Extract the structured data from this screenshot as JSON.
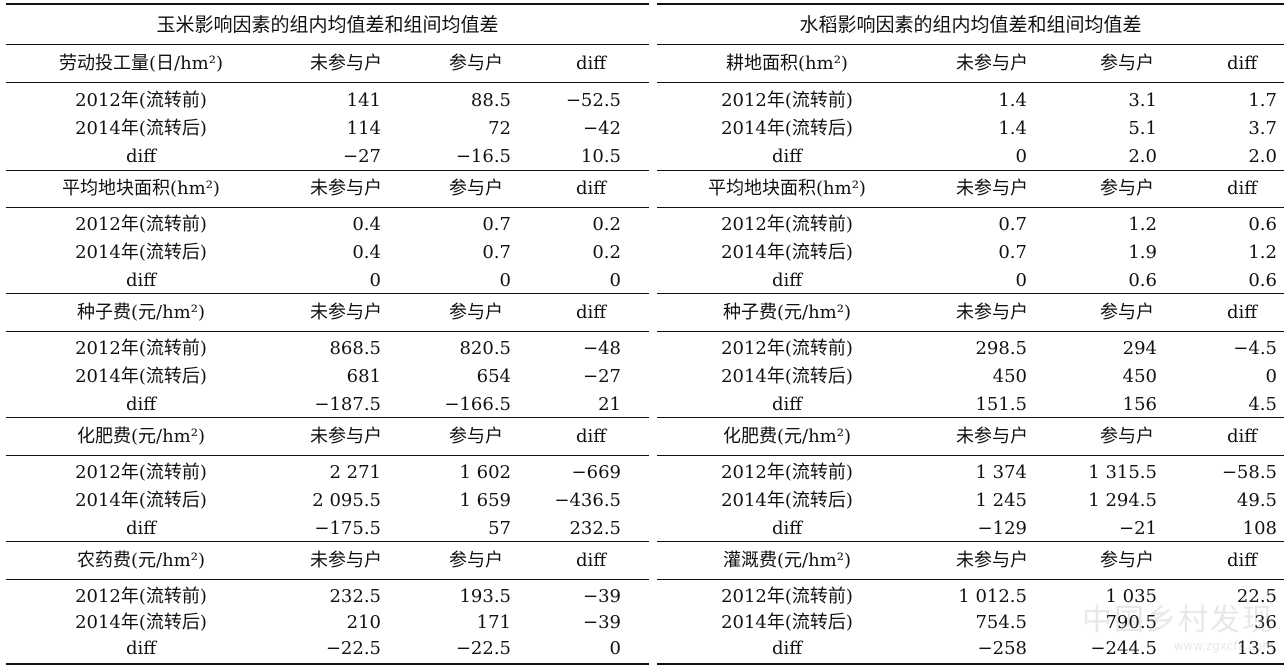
{
  "panels": [
    {
      "title": "玉米影响因素的组内均值差和组间均值差",
      "blocks": [
        {
          "header": [
            "劳动投工量(日/hm²)",
            "未参与户",
            "参与户",
            "diff"
          ],
          "rows": [
            [
              "2012年(流转前)",
              "141",
              "88.5",
              "−52.5"
            ],
            [
              "2014年(流转后)",
              "114",
              "72",
              "−42"
            ],
            [
              "diff",
              "−27",
              "−16.5",
              "10.5"
            ]
          ]
        },
        {
          "header": [
            "平均地块面积(hm²)",
            "未参与户",
            "参与户",
            "diff"
          ],
          "rows": [
            [
              "2012年(流转前)",
              "0.4",
              "0.7",
              "0.2"
            ],
            [
              "2014年(流转后)",
              "0.4",
              "0.7",
              "0.2"
            ],
            [
              "diff",
              "0",
              "0",
              "0"
            ]
          ]
        },
        {
          "header": [
            "种子费(元/hm²)",
            "未参与户",
            "参与户",
            "diff"
          ],
          "rows": [
            [
              "2012年(流转前)",
              "868.5",
              "820.5",
              "−48"
            ],
            [
              "2014年(流转后)",
              "681",
              "654",
              "−27"
            ],
            [
              "diff",
              "−187.5",
              "−166.5",
              "21"
            ]
          ]
        },
        {
          "header": [
            "化肥费(元/hm²)",
            "未参与户",
            "参与户",
            "diff"
          ],
          "rows": [
            [
              "2012年(流转前)",
              "2 271",
              "1 602",
              "−669"
            ],
            [
              "2014年(流转后)",
              "2 095.5",
              "1 659",
              "−436.5"
            ],
            [
              "diff",
              "−175.5",
              "57",
              "232.5"
            ]
          ]
        },
        {
          "header": [
            "农药费(元/hm²)",
            "未参与户",
            "参与户",
            "diff"
          ],
          "rows": [
            [
              "2012年(流转前)",
              "232.5",
              "193.5",
              "−39"
            ],
            [
              "2014年(流转后)",
              "210",
              "171",
              "−39"
            ],
            [
              "diff",
              "−22.5",
              "−22.5",
              "0"
            ]
          ]
        }
      ]
    },
    {
      "title": "水稻影响因素的组内均值差和组间均值差",
      "blocks": [
        {
          "header": [
            "耕地面积(hm²)",
            "未参与户",
            "参与户",
            "diff"
          ],
          "rows": [
            [
              "2012年(流转前)",
              "1.4",
              "3.1",
              "1.7"
            ],
            [
              "2014年(流转后)",
              "1.4",
              "5.1",
              "3.7"
            ],
            [
              "diff",
              "0",
              "2.0",
              "2.0"
            ]
          ]
        },
        {
          "header": [
            "平均地块面积(hm²)",
            "未参与户",
            "参与户",
            "diff"
          ],
          "rows": [
            [
              "2012年(流转前)",
              "0.7",
              "1.2",
              "0.6"
            ],
            [
              "2014年(流转后)",
              "0.7",
              "1.9",
              "1.2"
            ],
            [
              "diff",
              "0",
              "0.6",
              "0.6"
            ]
          ]
        },
        {
          "header": [
            "种子费(元/hm²)",
            "未参与户",
            "参与户",
            "diff"
          ],
          "rows": [
            [
              "2012年(流转前)",
              "298.5",
              "294",
              "−4.5"
            ],
            [
              "2014年(流转后)",
              "450",
              "450",
              "0"
            ],
            [
              "diff",
              "151.5",
              "156",
              "4.5"
            ]
          ]
        },
        {
          "header": [
            "化肥费(元/hm²)",
            "未参与户",
            "参与户",
            "diff"
          ],
          "rows": [
            [
              "2012年(流转前)",
              "1 374",
              "1 315.5",
              "−58.5"
            ],
            [
              "2014年(流转后)",
              "1 245",
              "1 294.5",
              "49.5"
            ],
            [
              "diff",
              "−129",
              "−21",
              "108"
            ]
          ]
        },
        {
          "header": [
            "灌溉费(元/hm²)",
            "未参与户",
            "参与户",
            "diff"
          ],
          "rows": [
            [
              "2012年(流转前)",
              "1 012.5",
              "1 035",
              "22.5"
            ],
            [
              "2014年(流转后)",
              "754.5",
              "790.5",
              "36"
            ],
            [
              "diff",
              "−258",
              "−244.5",
              "13.5"
            ]
          ]
        }
      ]
    }
  ],
  "watermark": {
    "text": "中国乡村发现",
    "url": "www.zgxcfx.com"
  }
}
